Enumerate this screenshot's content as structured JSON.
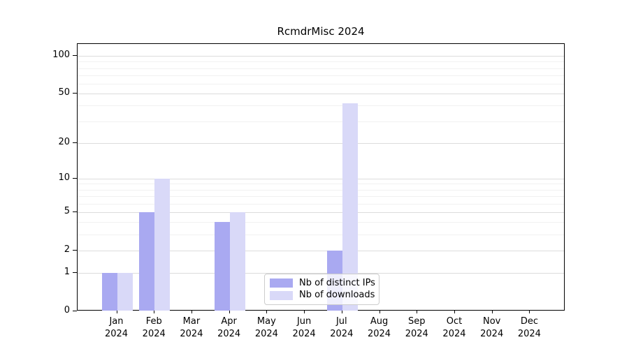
{
  "chart_data": {
    "type": "bar",
    "title": "RcmdrMisc 2024",
    "categories": [
      "Jan",
      "Feb",
      "Mar",
      "Apr",
      "May",
      "Jun",
      "Jul",
      "Aug",
      "Sep",
      "Oct",
      "Nov",
      "Dec"
    ],
    "year": "2024",
    "series": [
      {
        "name": "Nb of distinct IPs",
        "color": "#a9a9f1",
        "values": [
          1,
          5,
          0,
          4,
          0,
          0,
          2,
          0,
          0,
          0,
          0,
          0
        ]
      },
      {
        "name": "Nb of downloads",
        "color": "#d9d9f8",
        "values": [
          1,
          10,
          0,
          5,
          0,
          0,
          42,
          0,
          0,
          0,
          0,
          0
        ]
      }
    ],
    "xlabel": "",
    "ylabel": "",
    "y_scale": "log1p",
    "ylim": [
      0,
      124
    ],
    "y_ticks": [
      0,
      1,
      2,
      5,
      10,
      20,
      50,
      100
    ],
    "minor_gridlines": [
      3,
      4,
      6,
      7,
      8,
      9,
      30,
      40,
      60,
      70,
      80,
      90
    ],
    "grid": "on",
    "legend_position": "lower center inside"
  },
  "colors": {
    "major_gridline": "#dcdcdc",
    "minor_gridline": "#f1f1f1",
    "axis": "#000000",
    "legend_border": "#cccccc"
  }
}
